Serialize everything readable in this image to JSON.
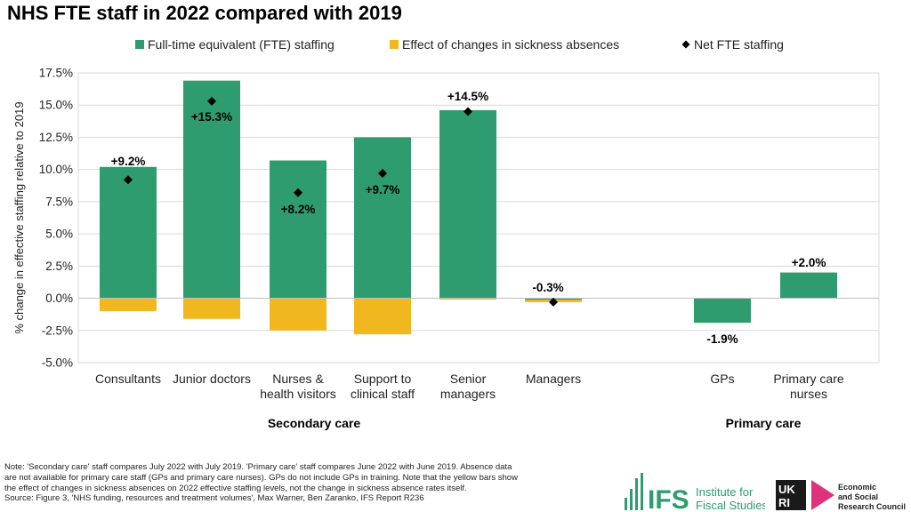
{
  "title": "NHS FTE staff in 2022 compared with 2019",
  "colors": {
    "fte": "#2e9c6e",
    "sickness": "#f0b71f",
    "net": "#000000",
    "grid": "#d9d9d9",
    "ifs_green": "#2e9c6e",
    "ukri_pink": "#e0317c"
  },
  "chart_data": {
    "type": "bar",
    "title": "NHS FTE staff in 2022 compared with 2019",
    "ylabel": "% change in effective staffing relative to 2019",
    "xlabel": "",
    "ylim": [
      -5.0,
      17.5
    ],
    "yticks": [
      "17.5%",
      "15.0%",
      "12.5%",
      "10.0%",
      "7.5%",
      "5.0%",
      "2.5%",
      "0.0%",
      "-2.5%",
      "-5.0%"
    ],
    "ytick_values": [
      17.5,
      15.0,
      12.5,
      10.0,
      7.5,
      5.0,
      2.5,
      0.0,
      -2.5,
      -5.0
    ],
    "grid": true,
    "legend_position": "top",
    "categories": [
      [
        "Consultants"
      ],
      [
        "Junior doctors"
      ],
      [
        "Nurses &",
        "health visitors"
      ],
      [
        "Support to",
        "clinical staff"
      ],
      [
        "Senior",
        "managers"
      ],
      [
        "Managers"
      ],
      [
        "GPs"
      ],
      [
        "Primary care",
        "nurses"
      ]
    ],
    "series": [
      {
        "name": "Full-time equivalent (FTE) staffing",
        "kind": "bar",
        "values": [
          10.2,
          16.9,
          10.7,
          12.5,
          14.6,
          -0.1,
          -1.9,
          2.0
        ]
      },
      {
        "name": "Effect of changes in sickness absences",
        "kind": "bar",
        "values": [
          -1.0,
          -1.6,
          -2.5,
          -2.8,
          -0.1,
          -0.2,
          null,
          null
        ]
      },
      {
        "name": "Net FTE staffing",
        "kind": "marker",
        "values": [
          9.2,
          15.3,
          8.2,
          9.7,
          14.5,
          -0.3,
          -1.9,
          2.0
        ]
      }
    ],
    "data_labels": [
      "+9.2%",
      "+15.3%",
      "+8.2%",
      "+9.7%",
      "+14.5%",
      "-0.3%",
      "-1.9%",
      "+2.0%"
    ],
    "groups": [
      "Secondary care",
      "Primary care"
    ]
  },
  "note": {
    "line1": "Note: 'Secondary care' staff compares July 2022 with July 2019. 'Primary care' staff compares June 2022 with June 2019. Absence data",
    "line2": "are not available for primary care staff (GPs and primary care nurses). GPs do not include GPs in training. Note that the yellow bars show",
    "line3": "the effect of changes in sickness absences on 2022 effective staffing levels, not the change in sickness absence rates itself.",
    "source": "Source: Figure 3, 'NHS funding, resources and treatment volumes', Max Warner, Ben Zaranko, IFS Report R236"
  },
  "logos": {
    "ifs_mark": "IFS",
    "ifs_name_1": "Institute for",
    "ifs_name_2": "Fiscal Studies",
    "ukri_mark_1": "UK",
    "ukri_mark_2": "RI",
    "ukri_name_1": "Economic",
    "ukri_name_2": "and Social",
    "ukri_name_3": "Research Council"
  }
}
